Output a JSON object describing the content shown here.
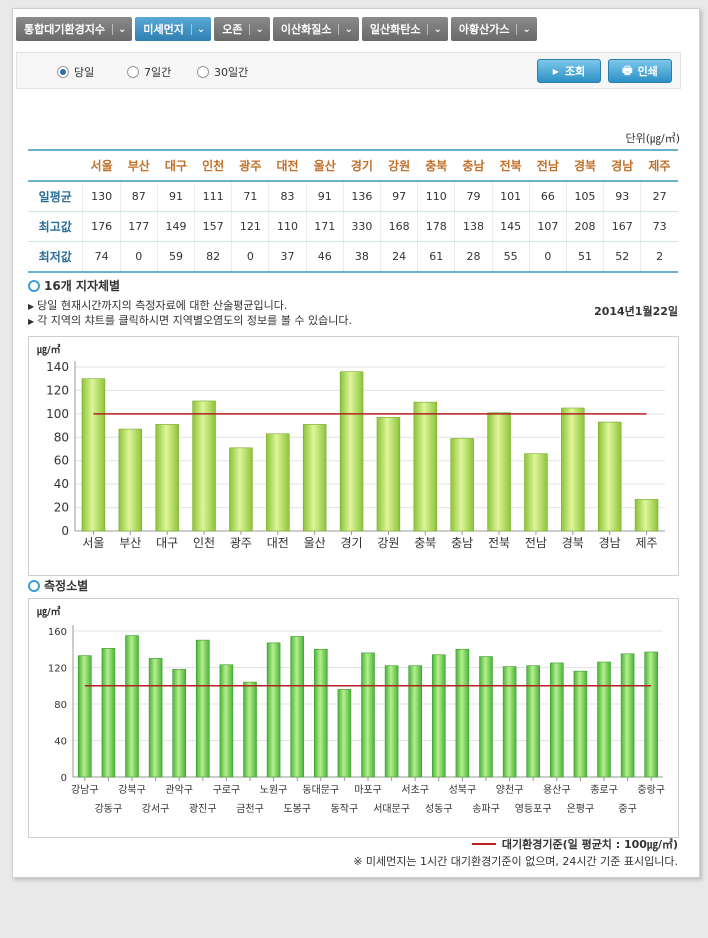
{
  "tabs": [
    {
      "label": "통합대기환경지수",
      "active": false
    },
    {
      "label": "미세먼지",
      "active": true
    },
    {
      "label": "오존",
      "active": false
    },
    {
      "label": "이산화질소",
      "active": false
    },
    {
      "label": "일산화탄소",
      "active": false
    },
    {
      "label": "아황산가스",
      "active": false
    }
  ],
  "period": {
    "options": [
      "당일",
      "7일간",
      "30일간"
    ],
    "selected": "당일"
  },
  "buttons": {
    "search": "조회",
    "print": "인쇄"
  },
  "unit_label": "단위(㎍/㎥)",
  "summary": {
    "regions": [
      "서울",
      "부산",
      "대구",
      "인천",
      "광주",
      "대전",
      "울산",
      "경기",
      "강원",
      "충북",
      "충남",
      "전북",
      "전남",
      "경북",
      "경남",
      "제주"
    ],
    "rows": [
      {
        "label": "일평균",
        "values": [
          130,
          87,
          91,
          111,
          71,
          83,
          91,
          136,
          97,
          110,
          79,
          101,
          66,
          105,
          93,
          27
        ]
      },
      {
        "label": "최고값",
        "values": [
          176,
          177,
          149,
          157,
          121,
          110,
          171,
          330,
          168,
          178,
          138,
          145,
          107,
          208,
          167,
          73
        ]
      },
      {
        "label": "최저값",
        "values": [
          74,
          0,
          59,
          82,
          0,
          37,
          46,
          38,
          24,
          61,
          28,
          55,
          0,
          51,
          52,
          2
        ]
      }
    ]
  },
  "section1": {
    "title": "16개 지자체별",
    "notes": [
      "당일 현재시간까지의 측정자료에 대한 산술평균입니다.",
      "각 지역의 챠트를 클릭하시면 지역별오염도의 정보를 볼 수 있습니다."
    ],
    "date": "2014년1월22일"
  },
  "section2": {
    "title": "측정소별"
  },
  "legend": "대기환경기준(일 평균치 : 100㎍/㎥)",
  "footnote": "※ 미세먼지는 1시간 대기환경기준이 없으며, 24시간 기준 표시입니다.",
  "colors": {
    "bar": "#9bd13c",
    "bar2": "#55c23a",
    "line": "#b22222",
    "accent": "#2f7fb2"
  },
  "chart_data": [
    {
      "type": "bar",
      "title": "16개 지자체별",
      "ylabel": "㎍/㎥",
      "ylim": [
        0,
        140
      ],
      "yticks": [
        0,
        20,
        40,
        60,
        80,
        100,
        120,
        140
      ],
      "reference_line": 100,
      "categories": [
        "서울",
        "부산",
        "대구",
        "인천",
        "광주",
        "대전",
        "울산",
        "경기",
        "강원",
        "충북",
        "충남",
        "전북",
        "전남",
        "경북",
        "경남",
        "제주"
      ],
      "values": [
        130,
        87,
        91,
        111,
        71,
        83,
        91,
        136,
        97,
        110,
        79,
        101,
        66,
        105,
        93,
        27
      ]
    },
    {
      "type": "bar",
      "title": "측정소별",
      "ylabel": "㎍/㎥",
      "ylim": [
        0,
        160
      ],
      "yticks": [
        0,
        40,
        80,
        120,
        160
      ],
      "reference_line": 100,
      "categories": [
        "강남구",
        "강동구",
        "강북구",
        "강서구",
        "관악구",
        "광진구",
        "구로구",
        "금천구",
        "노원구",
        "도봉구",
        "동대문구",
        "동작구",
        "마포구",
        "서대문구",
        "서초구",
        "성동구",
        "성북구",
        "송파구",
        "양천구",
        "영등포구",
        "용산구",
        "은평구",
        "종로구",
        "중구",
        "중랑구"
      ],
      "values": [
        133,
        141,
        155,
        130,
        118,
        150,
        123,
        104,
        147,
        154,
        140,
        96,
        136,
        122,
        122,
        134,
        140,
        132,
        121,
        122,
        125,
        116,
        126,
        135,
        137
      ]
    }
  ]
}
